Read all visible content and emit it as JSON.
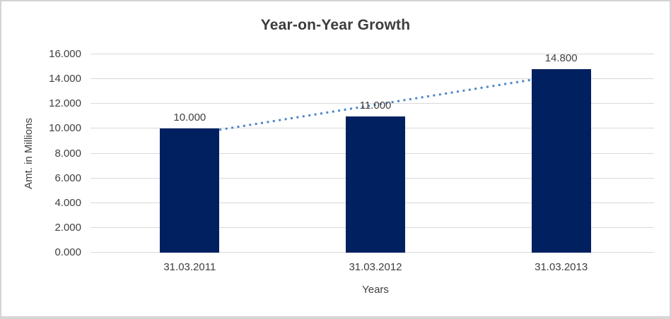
{
  "chart_data": {
    "type": "bar",
    "title": "Year-on-Year Growth",
    "xlabel": "Years",
    "ylabel": "Amt. in Millions",
    "categories": [
      "31.03.2011",
      "31.03.2012",
      "31.03.2013"
    ],
    "values": [
      10.0,
      11.0,
      14.8
    ],
    "data_labels": [
      "10.000",
      "11.000",
      "14.800"
    ],
    "ylim": [
      0,
      16
    ],
    "ytick_step": 2,
    "ytick_labels": [
      "0.000",
      "2.000",
      "4.000",
      "6.000",
      "8.000",
      "10.000",
      "12.000",
      "14.000",
      "16.000"
    ],
    "grid": true,
    "legend": "none",
    "trendline": {
      "type": "linear",
      "style": "dotted",
      "values": [
        9.53,
        11.93,
        14.33
      ]
    },
    "colors": {
      "bar_fill": "#002060",
      "trendline": "#4e86c8",
      "gridline": "#d9d9d9",
      "axis_text": "#404040",
      "title_text": "#3c3c3c",
      "frame_border": "#d3d3d3"
    }
  }
}
